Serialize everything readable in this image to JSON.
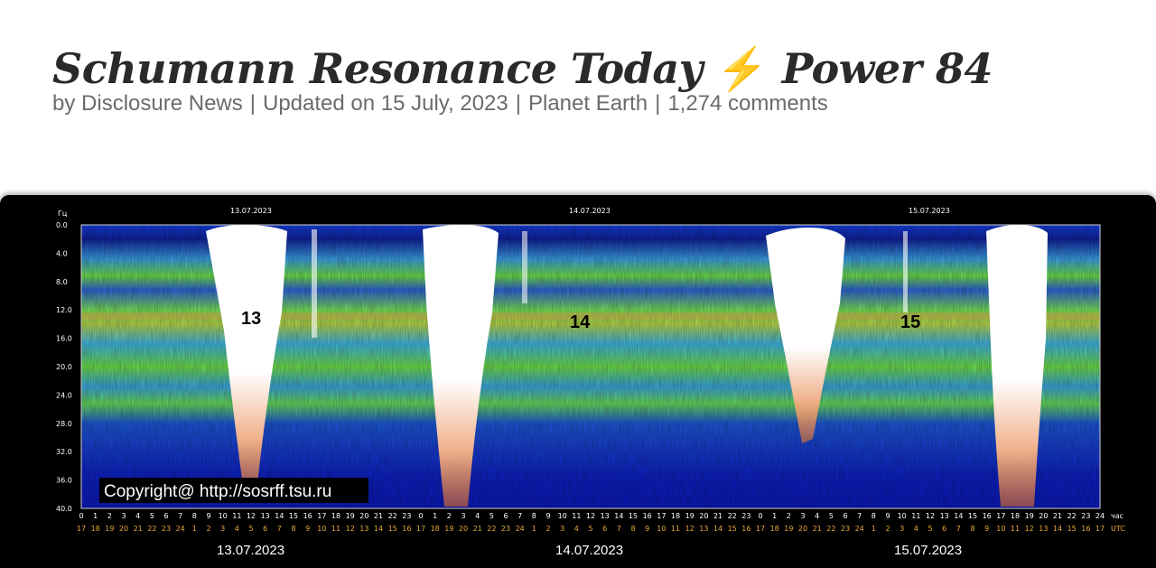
{
  "post": {
    "title_main": "Schumann Resonance Today",
    "title_icon": "lightning-bolt-icon",
    "title_bolt": "⚡",
    "title_power": "Power 84",
    "meta": {
      "author_prefix": "by",
      "author": "Disclosure News",
      "updated": "Updated on 15 July, 2023",
      "category": "Planet Earth",
      "comments": "1,274 comments",
      "separator": "|"
    }
  },
  "spectrogram": {
    "y_unit": "Гц",
    "y_ticks": [
      "0.0",
      "4.0",
      "8.0",
      "12.0",
      "16.0",
      "20.0",
      "24.0",
      "28.0",
      "32.0",
      "36.0",
      "40.0"
    ],
    "x_unit_local": "час",
    "x_unit_utc": "UTC",
    "days": [
      "13.07.2023",
      "14.07.2023",
      "15.07.2023"
    ],
    "day_numbers": [
      "13",
      "14",
      "15"
    ],
    "local_hours": [
      "0",
      "1",
      "2",
      "3",
      "4",
      "5",
      "6",
      "7",
      "8",
      "9",
      "10",
      "11",
      "12",
      "13",
      "14",
      "15",
      "16",
      "17",
      "18",
      "19",
      "20",
      "21",
      "22",
      "23"
    ],
    "utc_hours": [
      "17",
      "18",
      "19",
      "20",
      "21",
      "22",
      "23",
      "24",
      "1",
      "2",
      "3",
      "4",
      "5",
      "6",
      "7",
      "8",
      "9",
      "10",
      "11",
      "12",
      "13",
      "14",
      "15",
      "16"
    ],
    "final_local_hour": "24",
    "final_utc_hour": "17",
    "copyright": "Copyright@ http://sosrff.tsu.ru",
    "colors": {
      "background": "#000000",
      "deep_blue": "#0a1fd6",
      "cyan": "#3fb6e6",
      "green": "#6fe04a",
      "orange": "#e0702a",
      "white": "#ffffff"
    }
  }
}
